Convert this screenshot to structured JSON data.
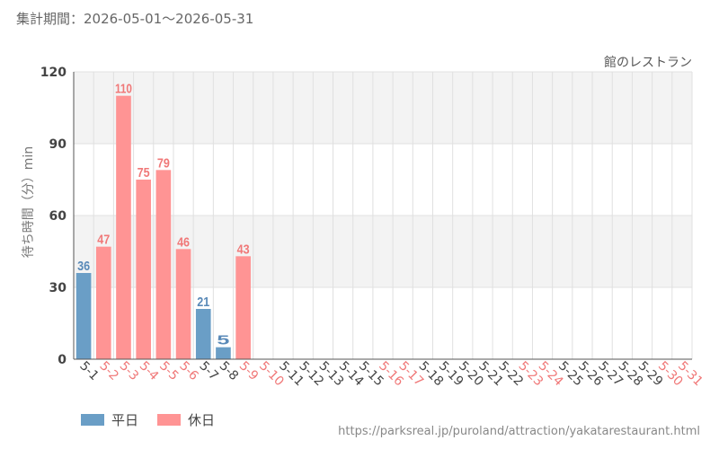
{
  "period_label": "集計期間：2026-05-01～2026-05-31",
  "legend": {
    "weekday": {
      "label": "平日",
      "color": "#6a9ec6"
    },
    "holiday": {
      "label": "休日",
      "color": "#ff9494"
    }
  },
  "source_url": "https://parksreal.jp/puroland/attraction/yakatarestaurant.html",
  "chart_data": {
    "type": "bar",
    "subtitle": "館のレストラン",
    "ylabel": "待ち時間（分）min",
    "ylim": [
      0,
      120
    ],
    "yticks": [
      0,
      30,
      60,
      90,
      120
    ],
    "categories": [
      "5-1",
      "5-2",
      "5-3",
      "5-4",
      "5-5",
      "5-6",
      "5-7",
      "5-8",
      "5-9",
      "5-10",
      "5-11",
      "5-12",
      "5-13",
      "5-14",
      "5-15",
      "5-16",
      "5-17",
      "5-18",
      "5-19",
      "5-20",
      "5-21",
      "5-22",
      "5-23",
      "5-24",
      "5-25",
      "5-26",
      "5-27",
      "5-28",
      "5-29",
      "5-30",
      "5-31"
    ],
    "day_type": [
      "weekday",
      "holiday",
      "holiday",
      "holiday",
      "holiday",
      "holiday",
      "weekday",
      "weekday",
      "holiday",
      "holiday",
      "weekday",
      "weekday",
      "weekday",
      "weekday",
      "weekday",
      "holiday",
      "holiday",
      "weekday",
      "weekday",
      "weekday",
      "weekday",
      "weekday",
      "holiday",
      "holiday",
      "weekday",
      "weekday",
      "weekday",
      "weekday",
      "weekday",
      "holiday",
      "holiday"
    ],
    "values": [
      36,
      47,
      110,
      75,
      79,
      46,
      21,
      5,
      43,
      null,
      null,
      null,
      null,
      null,
      null,
      null,
      null,
      null,
      null,
      null,
      null,
      null,
      null,
      null,
      null,
      null,
      null,
      null,
      null,
      null,
      null
    ],
    "colors": {
      "weekday_bar": "#6a9ec6",
      "holiday_bar": "#ff9494",
      "weekday_label": "#5a8ab8",
      "holiday_label": "#f07878",
      "weekday_tick": "#444444",
      "holiday_tick": "#f07878",
      "band": "#f3f3f3",
      "grid": "#e0e0e0"
    }
  }
}
